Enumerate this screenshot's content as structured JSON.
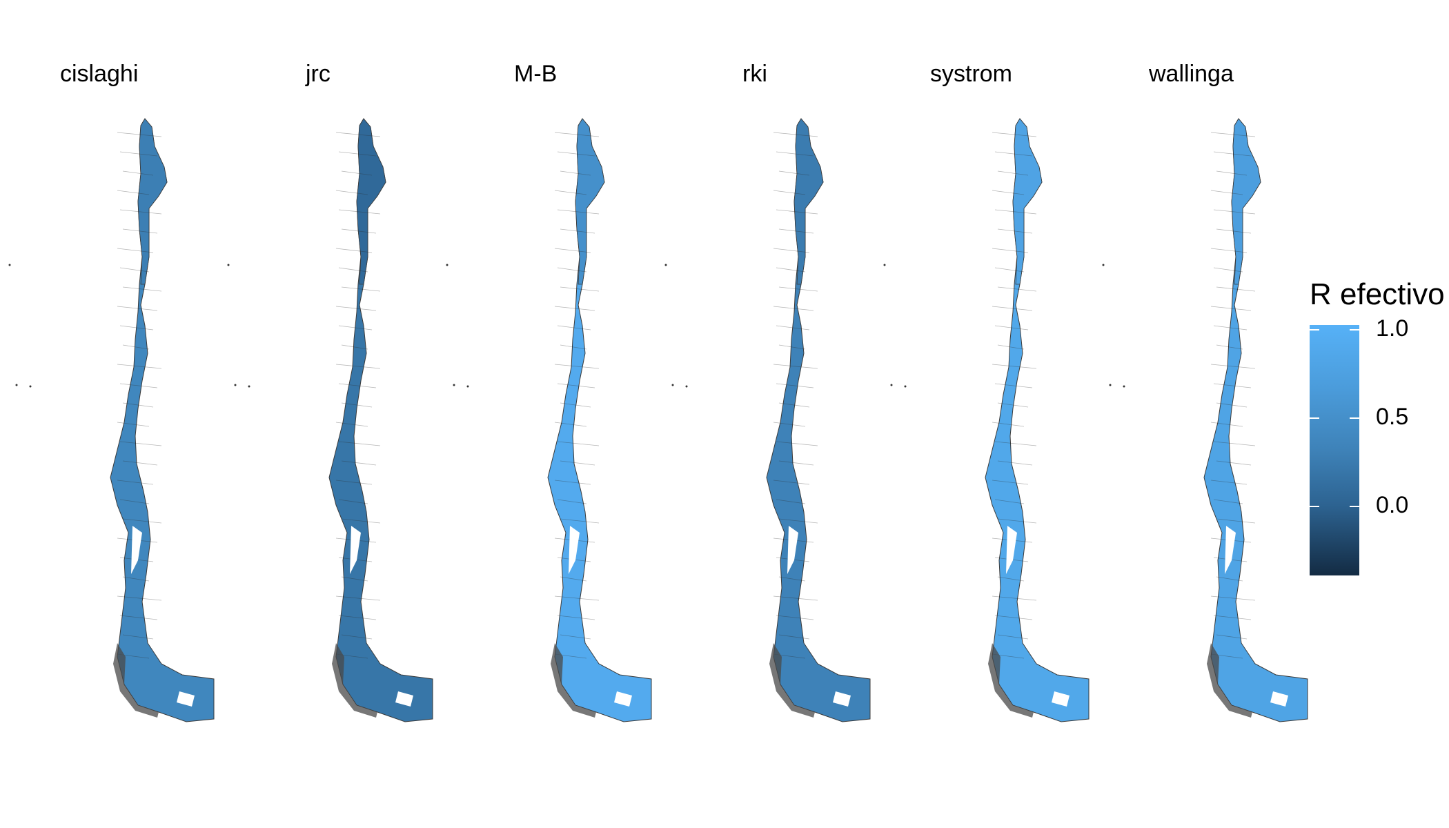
{
  "figure": {
    "panels": [
      {
        "title": "cislaghi",
        "value": 0.55,
        "north_value": 0.45
      },
      {
        "title": "jrc",
        "value": 0.3,
        "north_value": 0.1
      },
      {
        "title": "M-B",
        "value": 0.93,
        "north_value": 0.65
      },
      {
        "title": "rki",
        "value": 0.5,
        "north_value": 0.4
      },
      {
        "title": "systrom",
        "value": 0.9,
        "north_value": 0.85
      },
      {
        "title": "wallinga",
        "value": 0.86,
        "north_value": 0.8
      }
    ],
    "legend": {
      "title": "R efectivo",
      "labels": [
        "1.0",
        "0.5",
        "0.0"
      ],
      "ticks": [
        1.0,
        0.5,
        0.0
      ],
      "range": [
        -0.4,
        1.0
      ],
      "color_low": "#132b43",
      "color_high": "#56b1f7"
    }
  }
}
